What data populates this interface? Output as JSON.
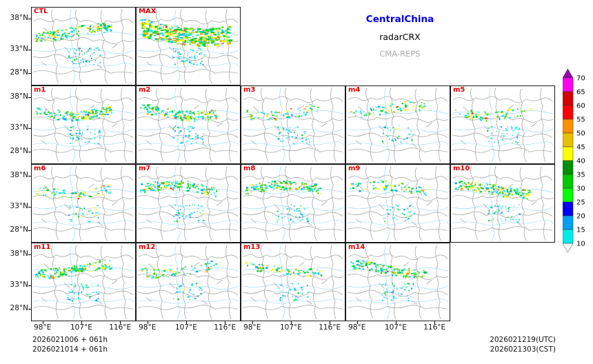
{
  "header": {
    "region": "CentralChina",
    "product": "radarCRX",
    "model": "CMA-REPS"
  },
  "axes": {
    "lat_ticks": [
      "38°N",
      "33°N",
      "28°N"
    ],
    "lon_ticks": [
      "98°E",
      "107°E",
      "116°E"
    ]
  },
  "panels": [
    {
      "id": "CTL",
      "intensity": "moderate"
    },
    {
      "id": "MAX",
      "intensity": "heavy"
    },
    {
      "id": "m1",
      "intensity": "moderate"
    },
    {
      "id": "m2",
      "intensity": "moderate"
    },
    {
      "id": "m3",
      "intensity": "light"
    },
    {
      "id": "m4",
      "intensity": "light"
    },
    {
      "id": "m5",
      "intensity": "light"
    },
    {
      "id": "m6",
      "intensity": "light"
    },
    {
      "id": "m7",
      "intensity": "moderate"
    },
    {
      "id": "m8",
      "intensity": "moderate"
    },
    {
      "id": "m9",
      "intensity": "light"
    },
    {
      "id": "m10",
      "intensity": "moderate"
    },
    {
      "id": "m11",
      "intensity": "moderate"
    },
    {
      "id": "m12",
      "intensity": "light"
    },
    {
      "id": "m13",
      "intensity": "light"
    },
    {
      "id": "m14",
      "intensity": "moderate"
    }
  ],
  "colorbar": {
    "values": [
      70,
      65,
      60,
      55,
      50,
      45,
      40,
      35,
      30,
      25,
      20,
      15,
      10
    ],
    "segment_colors_low_to_high": [
      "#00ecec",
      "#01a0f6",
      "#0000f6",
      "#00ff00",
      "#00c800",
      "#019001",
      "#ffff00",
      "#e7c000",
      "#ff9000",
      "#ff0000",
      "#d60000",
      "#ff00f0"
    ],
    "over_color": "#9600b4",
    "under_color": "#ffffff"
  },
  "footer": {
    "init_line1": "2026021006 + 061h",
    "init_line2": "2026021014 + 061h",
    "valid_line1": "2026021219(UTC)",
    "valid_line2": "2026021303(CST)"
  },
  "chart_data": {
    "type": "heatmap",
    "title": "CMA-REPS radarCRX ensemble multi-panel plot over CentralChina",
    "panel_labels": [
      "CTL",
      "MAX",
      "m1",
      "m2",
      "m3",
      "m4",
      "m5",
      "m6",
      "m7",
      "m8",
      "m9",
      "m10",
      "m11",
      "m12",
      "m13",
      "m14"
    ],
    "lon_ticks": [
      98,
      107,
      116
    ],
    "lat_ticks": [
      28,
      33,
      38
    ],
    "levels": [
      10,
      15,
      20,
      25,
      30,
      35,
      40,
      45,
      50,
      55,
      60,
      65,
      70
    ],
    "colors_low_to_high": [
      "#00ecec",
      "#01a0f6",
      "#0000f6",
      "#00ff00",
      "#00c800",
      "#019001",
      "#ffff00",
      "#e7c000",
      "#ff9000",
      "#ff0000",
      "#d60000",
      "#ff00f0"
    ],
    "over_color": "#9600b4",
    "under_color": "#ffffff",
    "legend_position": "right",
    "grid": false,
    "panel_echo_intensity": {
      "CTL": "moderate",
      "MAX": "heavy",
      "m1": "moderate",
      "m2": "moderate",
      "m3": "light",
      "m4": "light",
      "m5": "light",
      "m6": "light",
      "m7": "moderate",
      "m8": "moderate",
      "m9": "light",
      "m10": "moderate",
      "m11": "moderate",
      "m12": "light",
      "m13": "light",
      "m14": "moderate"
    },
    "notes": "Each panel shows an east-west radar echo band near 32-34N with scattered weaker echoes to the south; the MAX panel shows the strongest and most widespread echoes.",
    "init_times": [
      "2026021006 + 061h",
      "2026021014 + 061h"
    ],
    "valid_times": [
      "2026021219(UTC)",
      "2026021303(CST)"
    ]
  }
}
